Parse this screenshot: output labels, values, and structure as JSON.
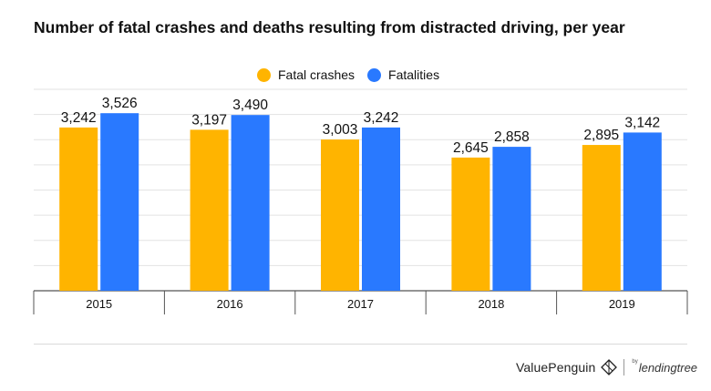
{
  "title": "Number of fatal crashes and deaths resulting from distracted driving, per year",
  "legend": [
    {
      "label": "Fatal crashes",
      "color": "#FFB400"
    },
    {
      "label": "Fatalities",
      "color": "#2979FF"
    }
  ],
  "branding": {
    "valuepenguin": "ValuePenguin",
    "by": "by",
    "lendingtree": "lendingtree"
  },
  "chart_data": {
    "type": "bar",
    "title": "Number of fatal crashes and deaths resulting from distracted driving, per year",
    "categories": [
      "2015",
      "2016",
      "2017",
      "2018",
      "2019"
    ],
    "series": [
      {
        "name": "Fatal crashes",
        "color": "#FFB400",
        "values": [
          3242,
          3197,
          3003,
          2645,
          2895
        ],
        "labels": [
          "3,242",
          "3,197",
          "3,003",
          "2,645",
          "2,895"
        ]
      },
      {
        "name": "Fatalities",
        "color": "#2979FF",
        "values": [
          3526,
          3490,
          3242,
          2858,
          3142
        ],
        "labels": [
          "3,526",
          "3,490",
          "3,242",
          "2,858",
          "3,142"
        ]
      }
    ],
    "xlabel": "",
    "ylabel": "",
    "ylim": [
      0,
      4000
    ],
    "grid": true,
    "legend_position": "top-center"
  }
}
